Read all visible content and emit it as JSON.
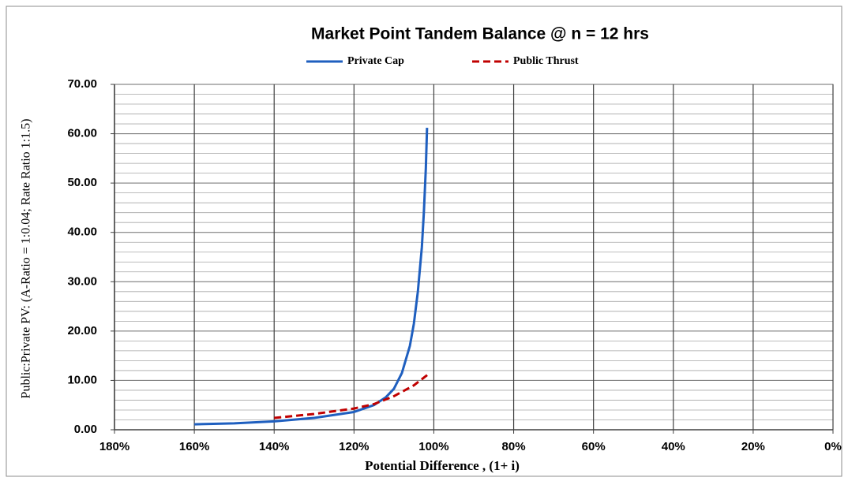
{
  "chart_data": {
    "type": "line",
    "title": "Market Point Tandem Balance @ n = 12 hrs",
    "x_label": "Potential Difference  , (1+ i)",
    "y_label": "Public:Private PV: (A-Ratio = 1:0.04; Rate Ratio 1:1.5)",
    "legend": "top",
    "grid": true,
    "xlim": [
      180,
      0
    ],
    "xticks": [
      {
        "value": 180,
        "label": "180%"
      },
      {
        "value": 160,
        "label": "160%"
      },
      {
        "value": 140,
        "label": "140%"
      },
      {
        "value": 120,
        "label": "120%"
      },
      {
        "value": 100,
        "label": "100%"
      },
      {
        "value": 80,
        "label": "80%"
      },
      {
        "value": 60,
        "label": "60%"
      },
      {
        "value": 40,
        "label": "40%"
      },
      {
        "value": 20,
        "label": "20%"
      },
      {
        "value": 0,
        "label": "0%"
      }
    ],
    "ylim": [
      0,
      70
    ],
    "yticks": [
      {
        "value": 0,
        "label": "0.00"
      },
      {
        "value": 10,
        "label": "10.00"
      },
      {
        "value": 20,
        "label": "20.00"
      },
      {
        "value": 30,
        "label": "30.00"
      },
      {
        "value": 40,
        "label": "40.00"
      },
      {
        "value": 50,
        "label": "50.00"
      },
      {
        "value": 60,
        "label": "60.00"
      },
      {
        "value": 70,
        "label": "70.00"
      }
    ],
    "y_minor_ticks": [
      2,
      4,
      6,
      8,
      12,
      14,
      16,
      18,
      22,
      24,
      26,
      28,
      32,
      34,
      36,
      38,
      42,
      44,
      46,
      48,
      52,
      54,
      56,
      58,
      62,
      64,
      66,
      68
    ],
    "series": [
      {
        "name": "Private Cap",
        "color": "#1f5fbf",
        "dash": "solid",
        "x": [
          160,
          150,
          140,
          130,
          120,
          115,
          112,
          110,
          108,
          106,
          105,
          104,
          103,
          102.5,
          102,
          101.7
        ],
        "values": [
          1.1,
          1.3,
          1.7,
          2.4,
          3.6,
          5.0,
          6.6,
          8.3,
          11.5,
          17,
          21.5,
          28,
          37,
          44,
          53,
          61.2
        ]
      },
      {
        "name": "Public Thrust",
        "color": "#c00000",
        "dash": "dashed",
        "x": [
          140,
          130,
          120,
          115,
          110,
          105,
          101
        ],
        "values": [
          2.4,
          3.2,
          4.3,
          5.2,
          6.8,
          9.0,
          11.5
        ]
      }
    ]
  }
}
